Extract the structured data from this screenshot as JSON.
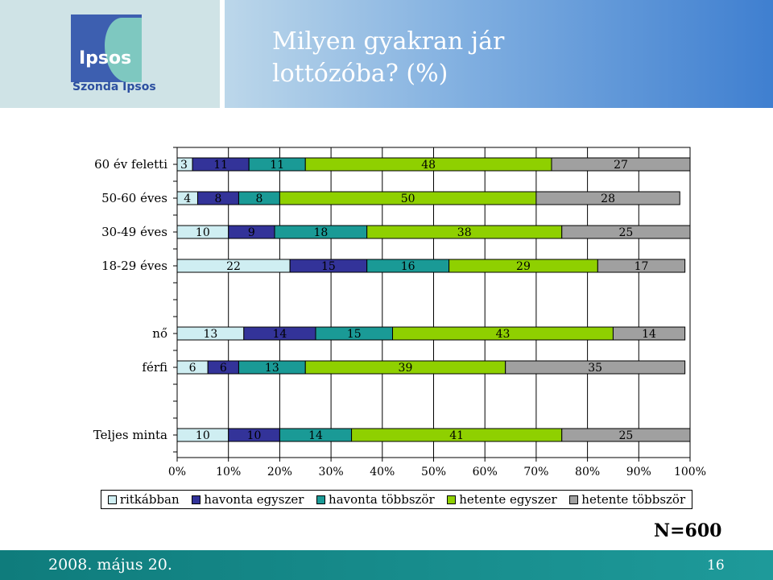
{
  "header": {
    "logo_text": "Ipsos",
    "logo_sub": "Szonda Ipsos",
    "title_line1": "Milyen gyakran jár",
    "title_line2": "lottózóba? (%)"
  },
  "chart_data": {
    "type": "bar",
    "orientation": "horizontal-stacked-100",
    "title": "Milyen gyakran jár lottózóba? (%)",
    "categories": [
      "60 év feletti",
      "50-60 éves",
      "30-49 éves",
      "18-29 éves",
      "nő",
      "férfi",
      "Teljes minta"
    ],
    "groups": [
      [
        0,
        1,
        2,
        3
      ],
      [
        4,
        5
      ],
      [
        6
      ]
    ],
    "series": [
      {
        "name": "ritkábban",
        "color": "#cfeef2",
        "values": [
          3,
          4,
          10,
          22,
          13,
          6,
          10
        ]
      },
      {
        "name": "havonta egyszer",
        "color": "#333399",
        "values": [
          11,
          8,
          9,
          15,
          14,
          6,
          10
        ]
      },
      {
        "name": "havonta többször",
        "color": "#1a9a96",
        "values": [
          11,
          8,
          18,
          16,
          15,
          13,
          14
        ]
      },
      {
        "name": "hetente egyszer",
        "color": "#8fd000",
        "values": [
          48,
          50,
          38,
          29,
          43,
          39,
          41
        ]
      },
      {
        "name": "hetente többször",
        "color": "#a0a0a0",
        "values": [
          27,
          28,
          25,
          17,
          14,
          35,
          25
        ]
      }
    ],
    "xlim": [
      0,
      100
    ],
    "xticks": [
      "0%",
      "10%",
      "20%",
      "30%",
      "40%",
      "50%",
      "60%",
      "70%",
      "80%",
      "90%",
      "100%"
    ],
    "grid": true,
    "legend": "bottom"
  },
  "note": "N=600",
  "footer": {
    "date": "2008. május 20.",
    "page": "16"
  }
}
